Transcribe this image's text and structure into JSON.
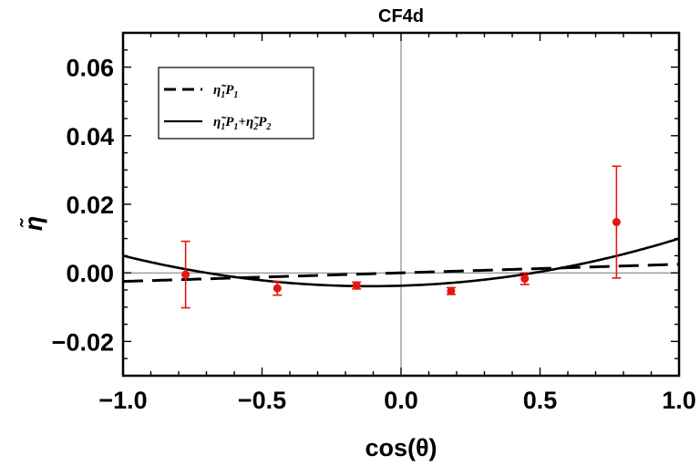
{
  "chart_data": {
    "type": "scatter",
    "title": "CF4d",
    "xlabel": "cos(θ)",
    "ylabel": "η̃",
    "xlim": [
      -1.0,
      1.0
    ],
    "ylim": [
      -0.03,
      0.07
    ],
    "x_ticks": [
      -1.0,
      -0.5,
      0.0,
      0.5,
      1.0
    ],
    "x_tick_labels": [
      "−1.0",
      "−0.5",
      "0.0",
      "0.5",
      "1.0"
    ],
    "y_ticks": [
      -0.02,
      0.0,
      0.02,
      0.04,
      0.06
    ],
    "y_tick_labels": [
      "−0.02",
      "0.00",
      "0.02",
      "0.04",
      "0.06"
    ],
    "grid": false,
    "legend_position": "top-left",
    "series": [
      {
        "name": "η̃₁P₁ + η̃₂P₂",
        "kind": "line",
        "style": "solid",
        "color": "#000000",
        "eta1": 0.0025,
        "eta2": 0.0075,
        "legend": {
          "main1": "η̃",
          "sub1": "1",
          "main2": "P",
          "sub2": "1",
          "main3": "+η̃",
          "sub3": "2",
          "main4": "P",
          "sub4": "2"
        }
      },
      {
        "name": "η̃₁P₁",
        "kind": "line",
        "style": "dashed",
        "color": "#000000",
        "eta1": 0.0025,
        "legend": {
          "main1": "η̃",
          "sub1": "1",
          "main2": "P",
          "sub2": "1"
        }
      },
      {
        "name": "data",
        "kind": "points",
        "color": "#e8150f",
        "x": [
          -0.775,
          -0.445,
          -0.16,
          0.18,
          0.445,
          0.775
        ],
        "y": [
          -0.0005,
          -0.0045,
          -0.0037,
          -0.0053,
          -0.0017,
          0.0148
        ],
        "err": [
          0.0097,
          0.002,
          0.001,
          0.001,
          0.0017,
          0.0163
        ]
      }
    ]
  }
}
